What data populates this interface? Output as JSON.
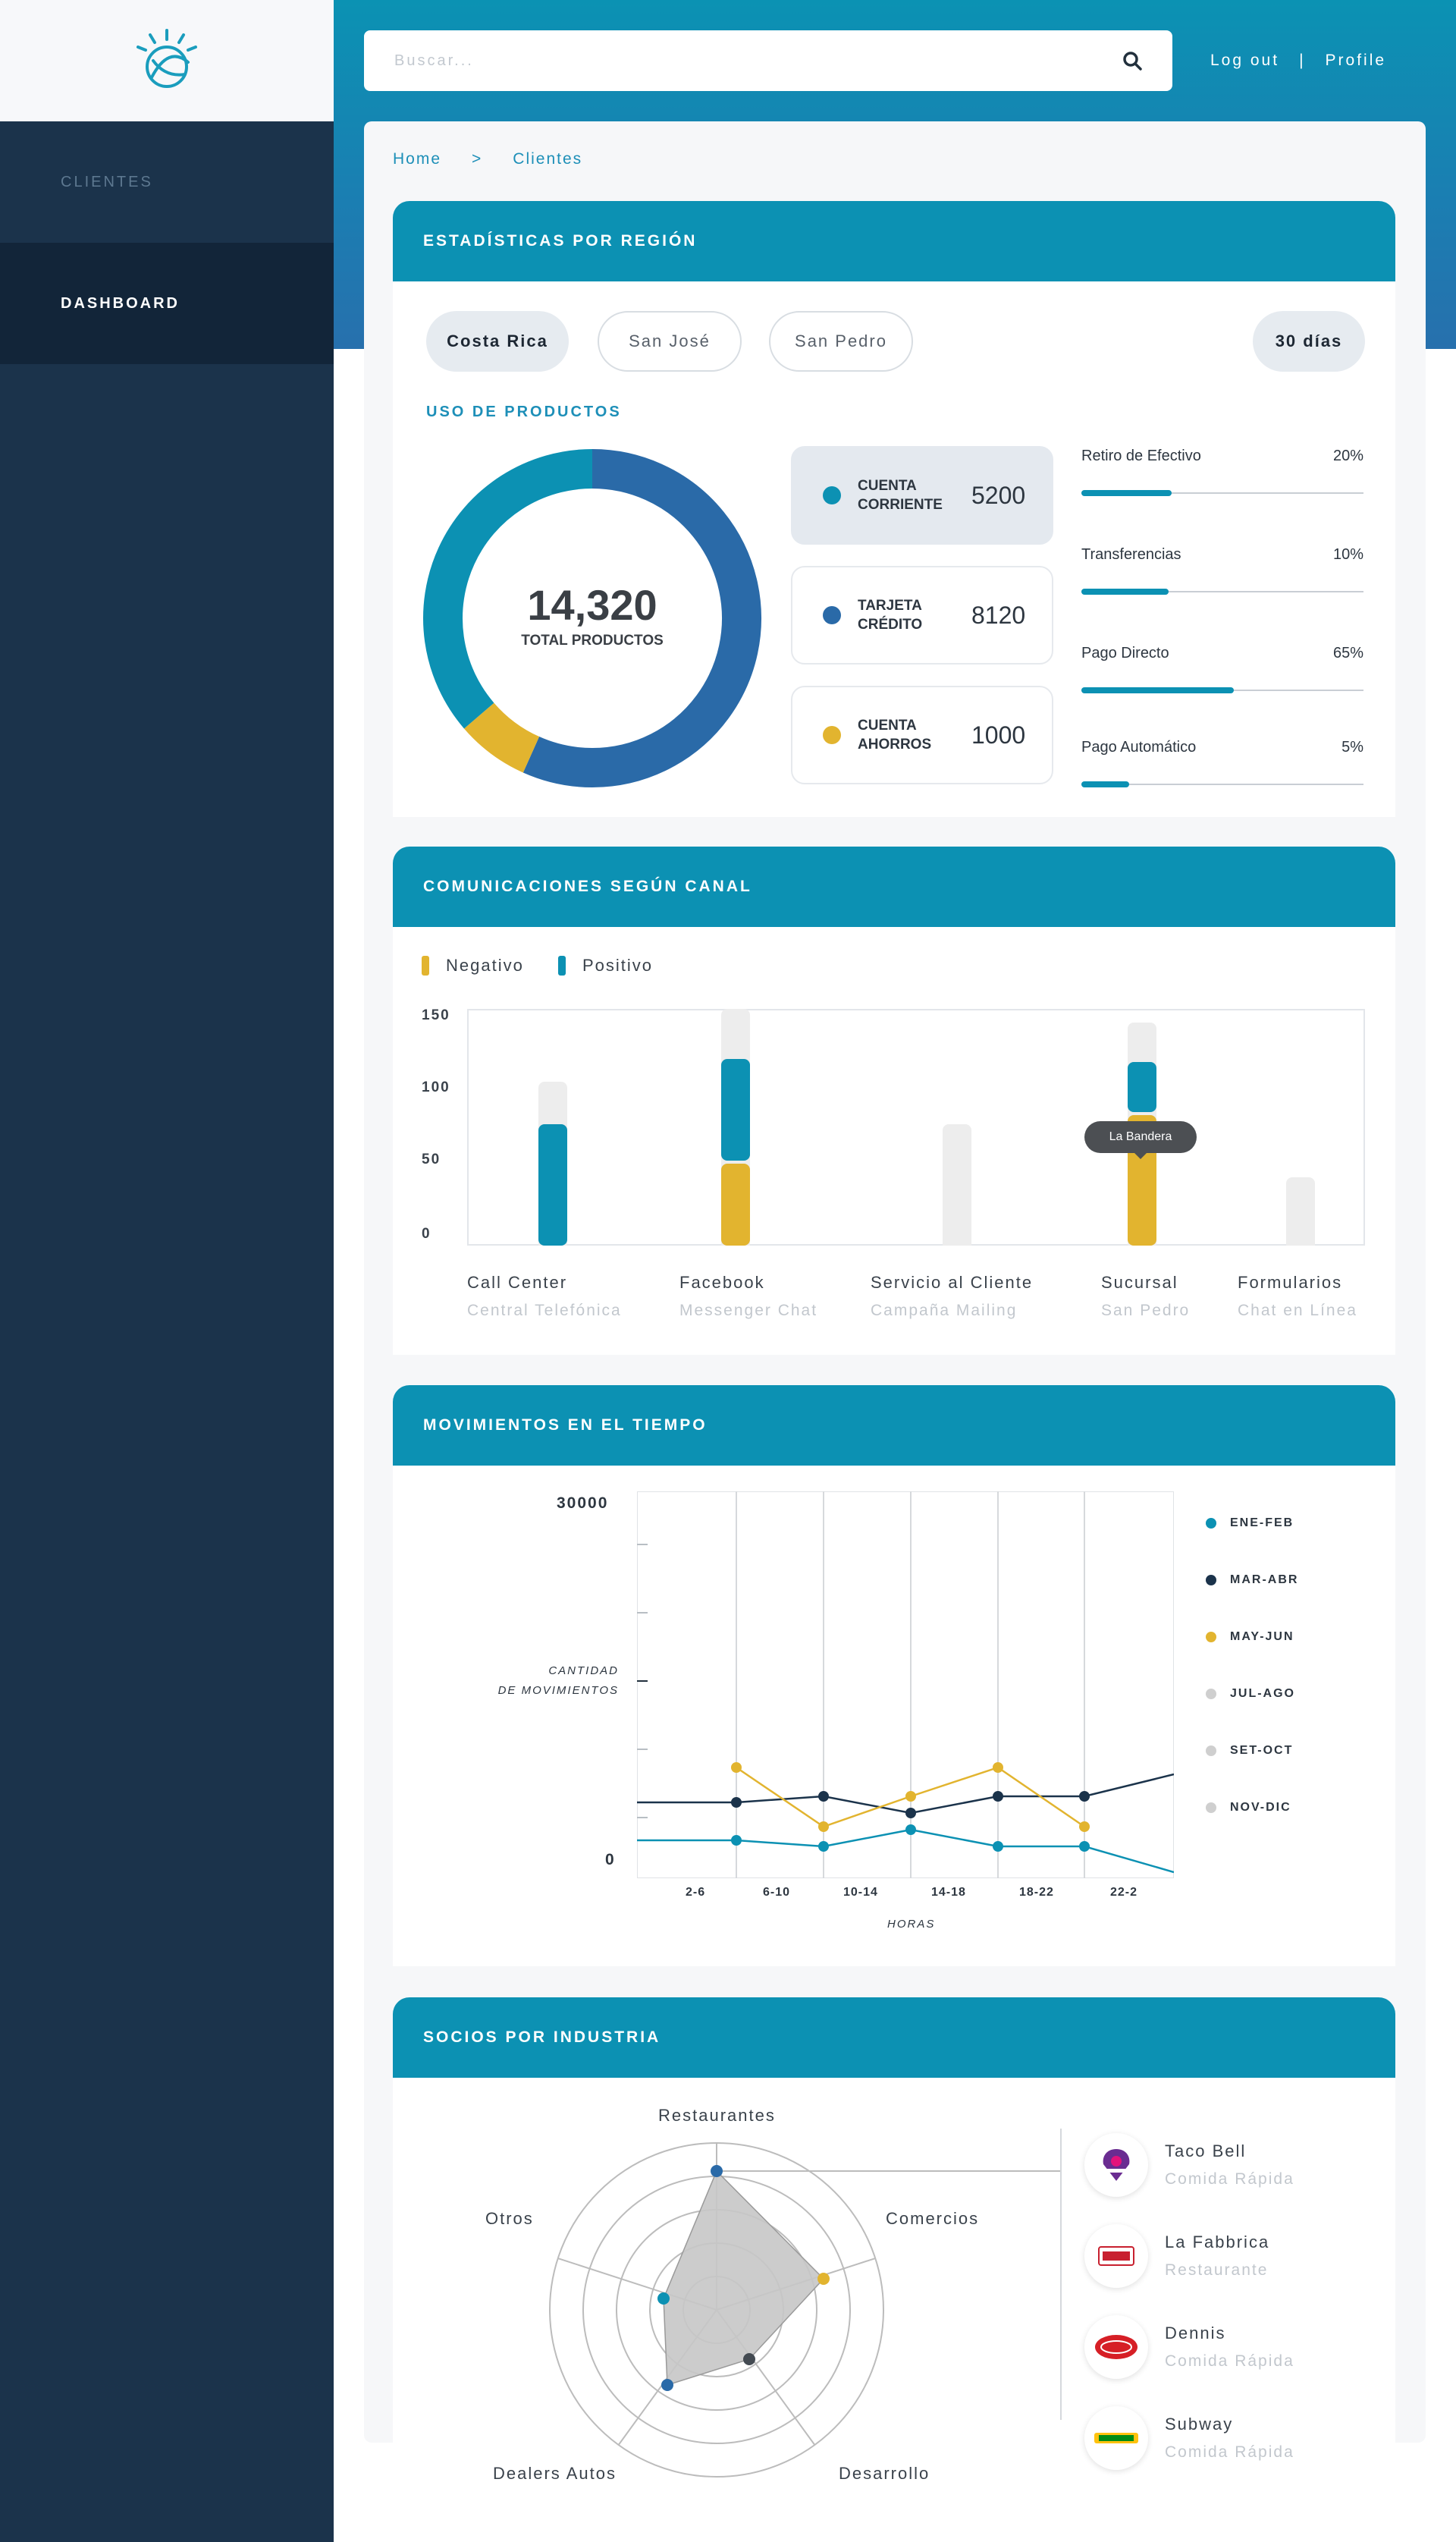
{
  "sidebar": {
    "logo_icon": "ibm-watson-logo-icon",
    "items": [
      {
        "label": "CLIENTES"
      },
      {
        "label": "DASHBOARD",
        "active": true
      }
    ]
  },
  "header": {
    "search_placeholder": "Buscar...",
    "search_icon": "search-icon",
    "logout_label": "Log out",
    "separator": "|",
    "profile_label": "Profile"
  },
  "breadcrumb": {
    "home": "Home",
    "separator": ">",
    "current": "Clientes"
  },
  "colors": {
    "accent": "#0c91b3",
    "dark_blue": "#2a6aa8",
    "yellow": "#e2b42f",
    "navy": "#1b334b",
    "grey": "#cccccc"
  },
  "region_stats": {
    "title": "ESTADÍSTICAS POR REGIÓN",
    "chips": [
      "Costa Rica",
      "San José",
      "San Pedro"
    ],
    "period": "30 días",
    "products_title": "USO DE PRODUCTOS",
    "total_value": "14,320",
    "total_label": "TOTAL PRODUCTOS",
    "products": [
      {
        "name": "CUENTA\nCORRIENTE",
        "value": "5200",
        "color": "#0c91b3"
      },
      {
        "name": "TARJETA\nCRÉDITO",
        "value": "8120",
        "color": "#2a6aa8"
      },
      {
        "name": "CUENTA\nAHORROS",
        "value": "1000",
        "color": "#e2b42f"
      }
    ],
    "metrics": [
      {
        "label": "Retiro de Efectivo",
        "value": "20%",
        "fraction": 0.32
      },
      {
        "label": "Transferencias",
        "value": "10%",
        "fraction": 0.31
      },
      {
        "label": "Pago Directo",
        "value": "65%",
        "fraction": 0.54
      },
      {
        "label": "Pago Automático",
        "value": "5%",
        "fraction": 0.17
      }
    ]
  },
  "communications": {
    "title": "COMUNICACIONES SEGÚN CANAL",
    "legend_negative": "Negativo",
    "legend_positive": "Positivo",
    "tooltip": "La Bandera",
    "y_ticks": [
      "150",
      "100",
      "50",
      "0"
    ],
    "categories": [
      {
        "label": "Call Center",
        "sub": "Central Telefónica"
      },
      {
        "label": "Facebook",
        "sub": "Messenger Chat"
      },
      {
        "label": "Servicio al Cliente",
        "sub": "Campaña Mailing"
      },
      {
        "label": "Sucursal",
        "sub": "San Pedro"
      },
      {
        "label": "Formularios",
        "sub": "Chat en Línea"
      }
    ]
  },
  "movements": {
    "title": "MOVIMIENTOS EN EL TIEMPO",
    "y_max_label": "30000",
    "y_min_label": "0",
    "y_axis_label": "CANTIDAD\nDE MOVIMIENTOS",
    "x_axis_label": "HORAS",
    "x_ticks": [
      "2-6",
      "6-10",
      "10-14",
      "14-18",
      "18-22",
      "22-2"
    ],
    "legend": [
      {
        "label": "ENE-FEB",
        "color": "#0c91b3"
      },
      {
        "label": "MAR-ABR",
        "color": "#1b334b"
      },
      {
        "label": "MAY-JUN",
        "color": "#e2b42f"
      },
      {
        "label": "JUL-AGO",
        "color": "#cfcfcf"
      },
      {
        "label": "SET-OCT",
        "color": "#cfcfcf"
      },
      {
        "label": "NOV-DIC",
        "color": "#cfcfcf"
      }
    ]
  },
  "partners": {
    "title": "SOCIOS POR INDUSTRIA",
    "axes": [
      "Restaurantes",
      "Comercios",
      "Desarrollo",
      "Dealers Autos",
      "Otros"
    ],
    "companies": [
      {
        "name": "Taco Bell",
        "type": "Comida Rápida",
        "logo": "taco-bell-logo-icon"
      },
      {
        "name": "La Fabbrica",
        "type": "Restaurante",
        "logo": "la-fabbrica-logo-icon"
      },
      {
        "name": "Dennis",
        "type": "Comida Rápida",
        "logo": "dennis-logo-icon"
      },
      {
        "name": "Subway",
        "type": "Comida Rápida",
        "logo": "subway-logo-icon"
      }
    ]
  }
}
